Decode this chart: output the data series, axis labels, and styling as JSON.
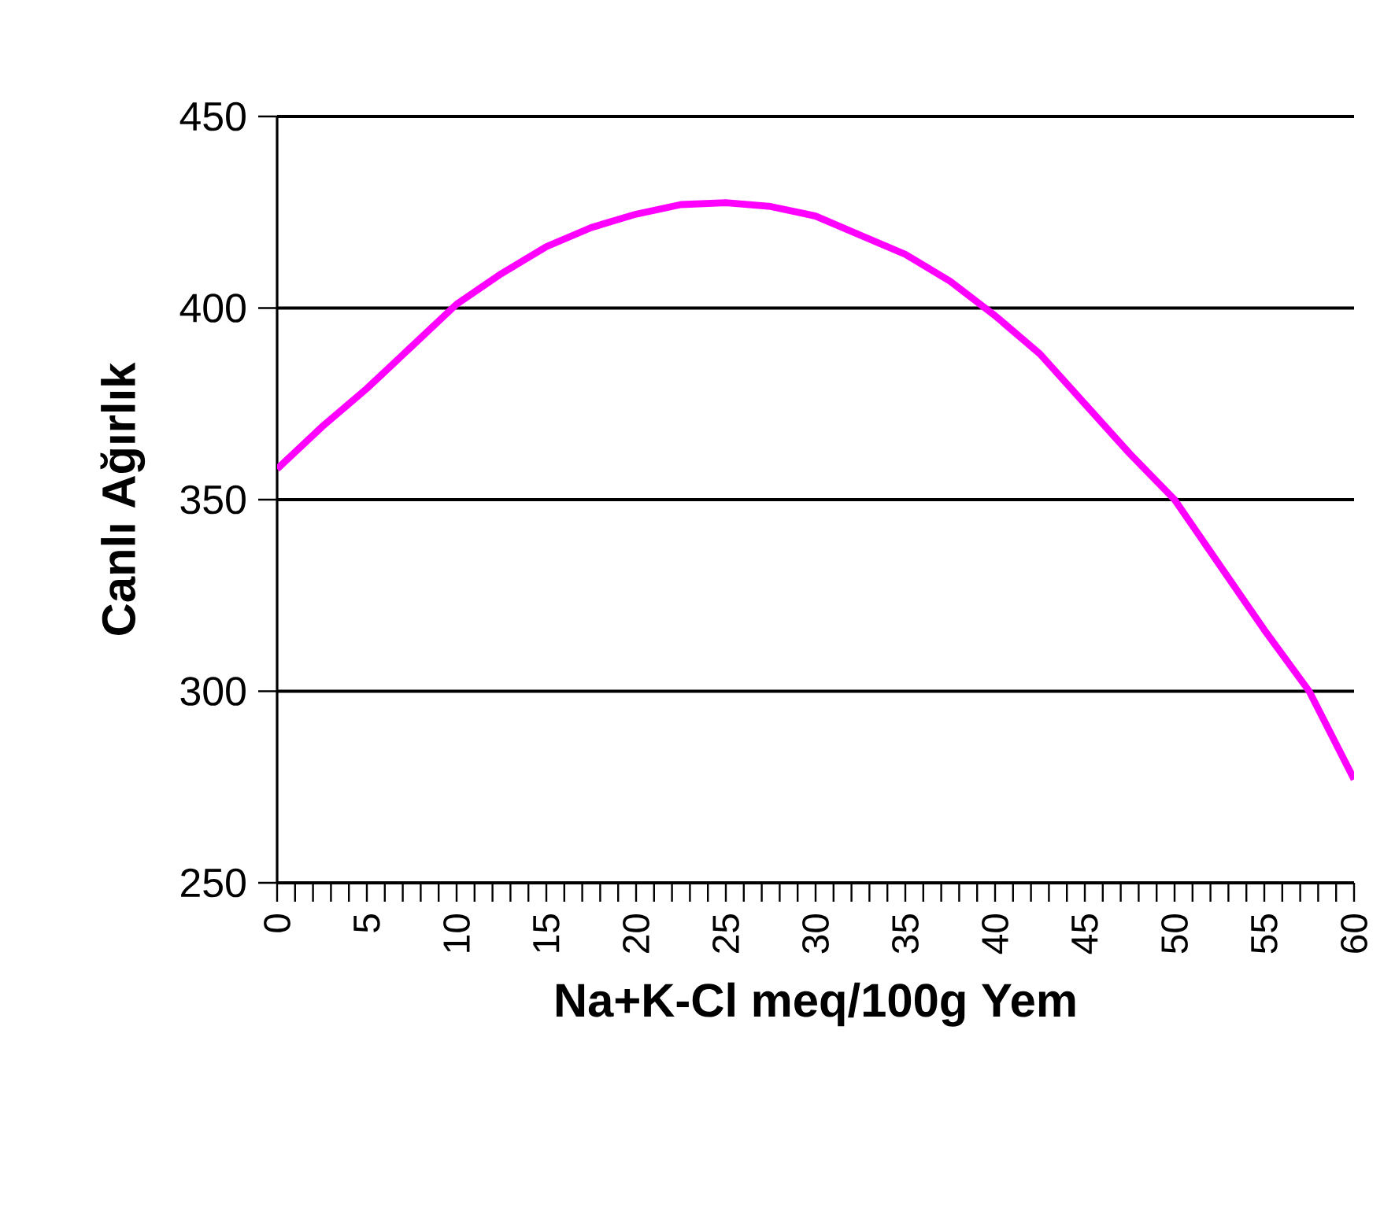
{
  "chart_data": {
    "type": "line",
    "xlabel": "Na+K-Cl meq/100g Yem",
    "ylabel": "Canlı Ağırlık",
    "x": [
      0,
      2.5,
      5,
      7.5,
      10,
      12.5,
      15,
      17.5,
      20,
      22.5,
      25,
      27.5,
      30,
      32.5,
      35,
      37.5,
      40,
      42.5,
      45,
      47.5,
      50,
      52.5,
      55,
      57.5,
      60
    ],
    "series": [
      {
        "color": "#ff00ff",
        "values": [
          358,
          369,
          379,
          390,
          401,
          409,
          416,
          421,
          424.5,
          427,
          427.5,
          426.5,
          424,
          419,
          414,
          407,
          398,
          388,
          375,
          362,
          350,
          333,
          316,
          300,
          277
        ]
      }
    ],
    "xlim": [
      0,
      60
    ],
    "ylim": [
      250,
      450
    ],
    "xticks": [
      0,
      {
        "value": 1,
        "label": null
      },
      {
        "value": 2,
        "label": null
      },
      {
        "value": 3,
        "label": null
      },
      {
        "value": 4,
        "label": null
      },
      5,
      {
        "value": 6,
        "label": null
      },
      {
        "value": 7,
        "label": null
      },
      {
        "value": 8,
        "label": null
      },
      {
        "value": 9,
        "label": null
      },
      10,
      {
        "value": 11,
        "label": null
      },
      {
        "value": 12,
        "label": null
      },
      {
        "value": 13,
        "label": null
      },
      {
        "value": 14,
        "label": null
      },
      15,
      {
        "value": 16,
        "label": null
      },
      {
        "value": 17,
        "label": null
      },
      {
        "value": 18,
        "label": null
      },
      {
        "value": 19,
        "label": null
      },
      20,
      {
        "value": 21,
        "label": null
      },
      {
        "value": 22,
        "label": null
      },
      {
        "value": 23,
        "label": null
      },
      {
        "value": 24,
        "label": null
      },
      25,
      {
        "value": 26,
        "label": null
      },
      {
        "value": 27,
        "label": null
      },
      {
        "value": 28,
        "label": null
      },
      {
        "value": 29,
        "label": null
      },
      30,
      {
        "value": 31,
        "label": null
      },
      {
        "value": 32,
        "label": null
      },
      {
        "value": 33,
        "label": null
      },
      {
        "value": 34,
        "label": null
      },
      35,
      {
        "value": 36,
        "label": null
      },
      {
        "value": 37,
        "label": null
      },
      {
        "value": 38,
        "label": null
      },
      {
        "value": 39,
        "label": null
      },
      40,
      {
        "value": 41,
        "label": null
      },
      {
        "value": 42,
        "label": null
      },
      {
        "value": 43,
        "label": null
      },
      {
        "value": 44,
        "label": null
      },
      45,
      {
        "value": 46,
        "label": null
      },
      {
        "value": 47,
        "label": null
      },
      {
        "value": 48,
        "label": null
      },
      {
        "value": 49,
        "label": null
      },
      50,
      {
        "value": 51,
        "label": null
      },
      {
        "value": 52,
        "label": null
      },
      {
        "value": 53,
        "label": null
      },
      {
        "value": 54,
        "label": null
      },
      55,
      {
        "value": 56,
        "label": null
      },
      {
        "value": 57,
        "label": null
      },
      {
        "value": 58,
        "label": null
      },
      {
        "value": 59,
        "label": null
      },
      60
    ],
    "yticks": [
      250,
      300,
      350,
      400,
      450
    ],
    "grid": "y",
    "marker": "none",
    "line_style": "solid"
  }
}
